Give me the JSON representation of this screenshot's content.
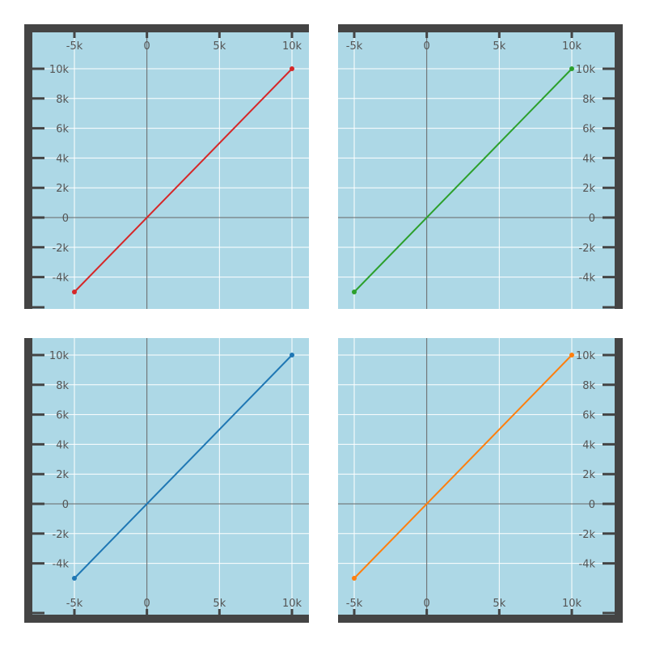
{
  "colors": {
    "plot_bg": "#add8e6",
    "frame": "#444444",
    "grid": "#ffffff",
    "zero_line": "#666666",
    "tick_text": "#555555"
  },
  "chart_data": [
    {
      "type": "line",
      "panel": "top-left",
      "x_axis_position": "top",
      "y_axis_position": "left",
      "series": [
        {
          "x": [
            -5000,
            10000
          ],
          "y": [
            -5000,
            10000
          ],
          "color": "#d62728"
        }
      ],
      "xlim": [
        -5000,
        10000
      ],
      "ylim": [
        -5000,
        10000
      ],
      "xticks": [
        -5000,
        0,
        5000,
        10000
      ],
      "xtick_labels": [
        "-5k",
        "0",
        "5k",
        "10k"
      ],
      "yticks": [
        -4000,
        -2000,
        0,
        2000,
        4000,
        6000,
        8000,
        10000
      ],
      "ytick_labels": [
        "-4k",
        "-2k",
        "0",
        "2k",
        "4k",
        "6k",
        "8k",
        "10k"
      ],
      "grid": true
    },
    {
      "type": "line",
      "panel": "top-right",
      "x_axis_position": "top",
      "y_axis_position": "right",
      "series": [
        {
          "x": [
            -5000,
            10000
          ],
          "y": [
            -5000,
            10000
          ],
          "color": "#2ca02c"
        }
      ],
      "xlim": [
        -5000,
        10000
      ],
      "ylim": [
        -5000,
        10000
      ],
      "xticks": [
        -5000,
        0,
        5000,
        10000
      ],
      "xtick_labels": [
        "-5k",
        "0",
        "5k",
        "10k"
      ],
      "yticks": [
        -4000,
        -2000,
        0,
        2000,
        4000,
        6000,
        8000,
        10000
      ],
      "ytick_labels": [
        "-4k",
        "-2k",
        "0",
        "2k",
        "4k",
        "6k",
        "8k",
        "10k"
      ],
      "grid": true
    },
    {
      "type": "line",
      "panel": "bottom-left",
      "x_axis_position": "bottom",
      "y_axis_position": "left",
      "series": [
        {
          "x": [
            -5000,
            10000
          ],
          "y": [
            -5000,
            10000
          ],
          "color": "#1f77b4"
        }
      ],
      "xlim": [
        -5000,
        10000
      ],
      "ylim": [
        -5000,
        10000
      ],
      "xticks": [
        -5000,
        0,
        5000,
        10000
      ],
      "xtick_labels": [
        "-5k",
        "0",
        "5k",
        "10k"
      ],
      "yticks": [
        -4000,
        -2000,
        0,
        2000,
        4000,
        6000,
        8000,
        10000
      ],
      "ytick_labels": [
        "-4k",
        "-2k",
        "0",
        "2k",
        "4k",
        "6k",
        "8k",
        "10k"
      ],
      "grid": true
    },
    {
      "type": "line",
      "panel": "bottom-right",
      "x_axis_position": "bottom",
      "y_axis_position": "right",
      "series": [
        {
          "x": [
            -5000,
            10000
          ],
          "y": [
            -5000,
            10000
          ],
          "color": "#ff7f0e"
        }
      ],
      "xlim": [
        -5000,
        10000
      ],
      "ylim": [
        -5000,
        10000
      ],
      "xticks": [
        -5000,
        0,
        5000,
        10000
      ],
      "xtick_labels": [
        "-5k",
        "0",
        "5k",
        "10k"
      ],
      "yticks": [
        -4000,
        -2000,
        0,
        2000,
        4000,
        6000,
        8000,
        10000
      ],
      "ytick_labels": [
        "-4k",
        "-2k",
        "0",
        "2k",
        "4k",
        "6k",
        "8k",
        "10k"
      ],
      "grid": true
    }
  ]
}
